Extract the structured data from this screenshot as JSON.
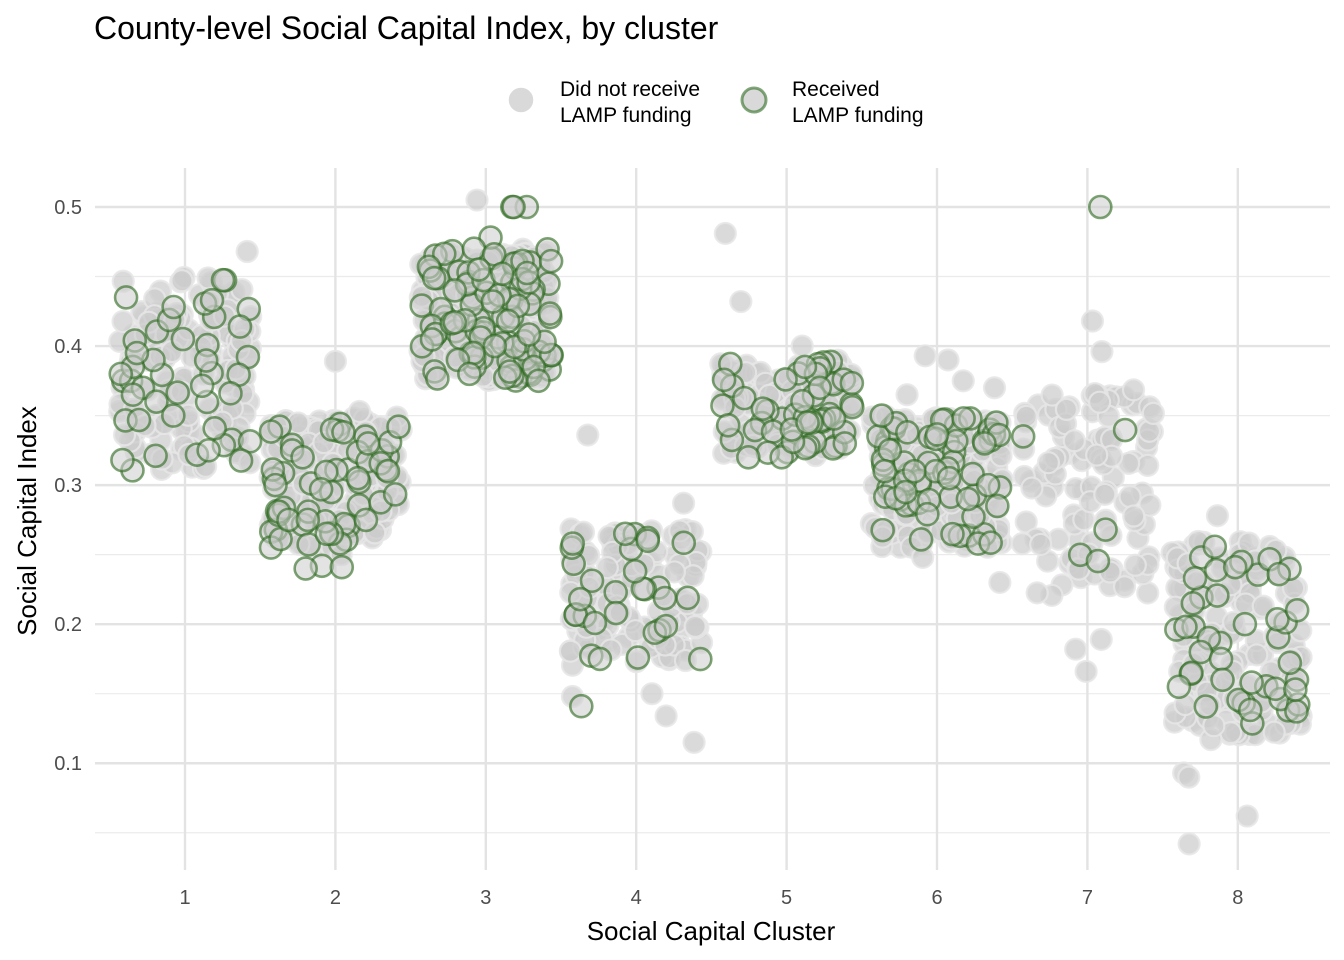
{
  "chart_data": {
    "type": "scatter",
    "title": "County-level Social Capital Index, by cluster",
    "xlabel": "Social Capital Cluster",
    "ylabel": "Social Capital Index",
    "categories": [
      "1",
      "2",
      "3",
      "4",
      "5",
      "6",
      "7",
      "8"
    ],
    "y_ticks": [
      "0.1",
      "0.2",
      "0.3",
      "0.4",
      "0.5"
    ],
    "y_tick_values": [
      0.1,
      0.2,
      0.3,
      0.4,
      0.5
    ],
    "ylim": [
      0.03,
      0.52
    ],
    "xlim": [
      0.4,
      8.6
    ],
    "grid": true,
    "legend": {
      "position": "top",
      "entries": [
        {
          "line1": "Did not receive",
          "line2": "LAMP funding",
          "fill": "#cccccc",
          "stroke": "#d9d9d9"
        },
        {
          "line1": "Received",
          "line2": "LAMP funding",
          "fill": "#cccccc",
          "stroke": "#2d6a1f"
        }
      ]
    },
    "colors": {
      "fill": "#cccccc",
      "not_received_stroke": "#e6e6e6",
      "received_stroke": "#2d6a1f"
    },
    "clusters": [
      {
        "cluster": 1,
        "range": [
          0.31,
          0.45
        ],
        "not_received_count": 150,
        "received_count": 30,
        "outliers_not_received": [
          0.468,
          0.449,
          0.447,
          0.432,
          0.322
        ],
        "received_points": [
          0.39,
          0.375,
          0.37,
          0.365,
          0.36,
          0.366,
          0.385,
          0.405,
          0.414,
          0.435,
          0.433,
          0.325,
          0.35,
          0.38,
          0.395
        ]
      },
      {
        "cluster": 2,
        "range": [
          0.255,
          0.35
        ],
        "not_received_count": 170,
        "received_count": 45,
        "outliers_not_received": [
          0.389,
          0.353,
          0.25
        ],
        "received_points": [
          0.242,
          0.241,
          0.24,
          0.275,
          0.265,
          0.295,
          0.3,
          0.305,
          0.31,
          0.32,
          0.338,
          0.342,
          0.297,
          0.275,
          0.33
        ]
      },
      {
        "cluster": 3,
        "range": [
          0.375,
          0.47
        ],
        "not_received_count": 220,
        "received_count": 90,
        "outliers_not_received": [
          0.505
        ],
        "received_points": [
          0.5,
          0.5,
          0.5,
          0.478,
          0.47,
          0.466,
          0.455,
          0.452,
          0.44,
          0.432,
          0.418,
          0.4,
          0.395,
          0.39,
          0.385,
          0.38,
          0.375
        ]
      },
      {
        "cluster": 4,
        "range": [
          0.17,
          0.27
        ],
        "not_received_count": 130,
        "received_count": 20,
        "outliers_not_received": [
          0.336,
          0.287,
          0.15,
          0.148,
          0.134,
          0.115
        ],
        "received_points": [
          0.141,
          0.176,
          0.175,
          0.208,
          0.218,
          0.238,
          0.255,
          0.262,
          0.26,
          0.265,
          0.258
        ]
      },
      {
        "cluster": 5,
        "range": [
          0.32,
          0.39
        ],
        "not_received_count": 120,
        "received_count": 40,
        "outliers_not_received": [
          0.481,
          0.432,
          0.4
        ],
        "received_points": [
          0.387,
          0.384,
          0.38,
          0.37,
          0.355,
          0.345,
          0.343,
          0.34,
          0.33,
          0.32,
          0.376,
          0.345,
          0.385
        ]
      },
      {
        "cluster": 6,
        "range": [
          0.255,
          0.35
        ],
        "not_received_count": 170,
        "received_count": 55,
        "outliers_not_received": [
          0.393,
          0.39,
          0.375,
          0.37,
          0.365,
          0.23,
          0.248
        ],
        "received_points": [
          0.35,
          0.348,
          0.345,
          0.336,
          0.33,
          0.325,
          0.312,
          0.31,
          0.31,
          0.31,
          0.305,
          0.3,
          0.295,
          0.29,
          0.285
        ]
      },
      {
        "cluster": 7,
        "range": [
          0.22,
          0.37
        ],
        "not_received_count": 110,
        "received_count": 3,
        "outliers_not_received": [
          0.418,
          0.396,
          0.189,
          0.182,
          0.166
        ],
        "received_points": [
          0.5,
          0.268,
          0.335
        ]
      },
      {
        "cluster": 8,
        "range": [
          0.12,
          0.26
        ],
        "not_received_count": 140,
        "received_count": 30,
        "outliers_not_received": [
          0.278,
          0.093,
          0.09,
          0.062,
          0.042,
          0.117,
          0.127
        ],
        "received_points": [
          0.241,
          0.236,
          0.233,
          0.215,
          0.21,
          0.2,
          0.198,
          0.19,
          0.18,
          0.175,
          0.165,
          0.16,
          0.155,
          0.153
        ]
      }
    ]
  }
}
